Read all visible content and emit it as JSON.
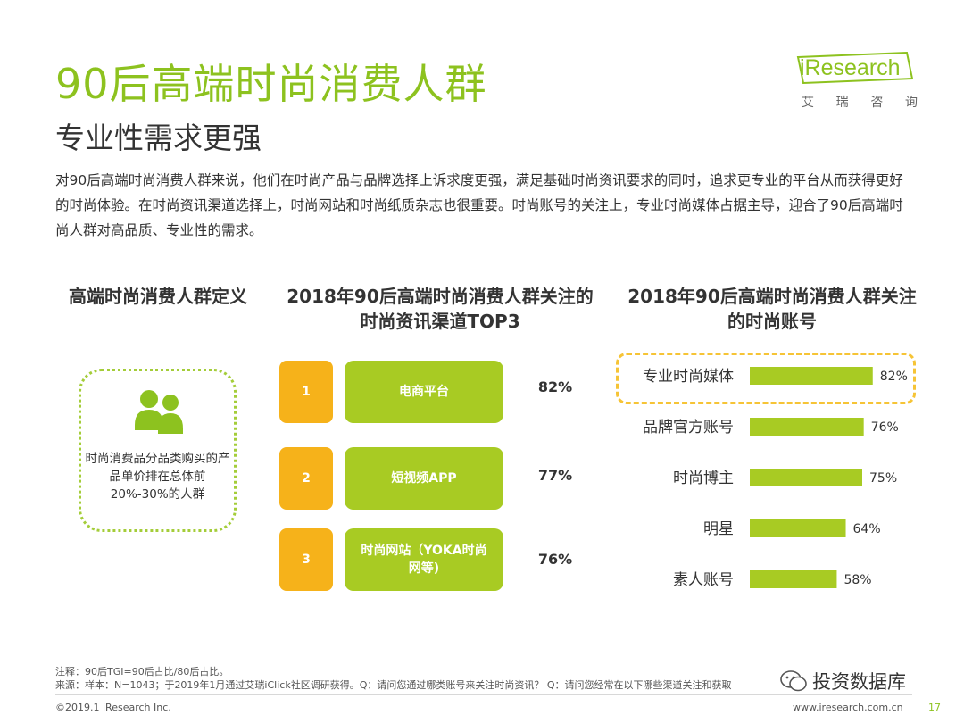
{
  "header": {
    "title": "90后高端时尚消费人群",
    "subtitle": "专业性需求更强"
  },
  "logo": {
    "text": "iResearch",
    "cn": [
      "艾",
      "瑞",
      "咨",
      "询"
    ],
    "color": "#8dc21f"
  },
  "intro": "对90后高端时尚消费人群来说，他们在时尚产品与品牌选择上诉求度更强，满足基础时尚资讯要求的同时，追求更专业的平台从而获得更好的时尚体验。在时尚资讯渠道选择上，时尚网站和时尚纸质杂志也很重要。时尚账号的关注上，专业时尚媒体占据主导，迎合了90后高端时尚人群对高品质、专业性的需求。",
  "definition": {
    "title": "高端时尚消费人群定义",
    "icon": "people-icon",
    "text": "时尚消费品分品类购买的产品单价排在总体前20%-30%的人群"
  },
  "chart_data": [
    {
      "type": "table",
      "title": "2018年90后高端时尚消费人群关注的时尚资讯渠道TOP3",
      "columns": [
        "rank",
        "channel",
        "percent"
      ],
      "rows": [
        [
          "1",
          "电商平台",
          "82%"
        ],
        [
          "2",
          "短视频APP",
          "77%"
        ],
        [
          "3",
          "时尚网站（YOKA时尚网等)",
          "76%"
        ]
      ],
      "colors": {
        "rank": "#f6b21a",
        "channel": "#a8cb23"
      }
    },
    {
      "type": "bar",
      "orientation": "horizontal",
      "title": "2018年90后高端时尚消费人群关注的时尚账号",
      "categories": [
        "专业时尚媒体",
        "品牌官方账号",
        "时尚博主",
        "明星",
        "素人账号"
      ],
      "values": [
        82,
        76,
        75,
        64,
        58
      ],
      "value_labels": [
        "82%",
        "76%",
        "75%",
        "64%",
        "58%"
      ],
      "unit": "%",
      "xlim": [
        0,
        100
      ],
      "bar_color": "#a8cb23",
      "highlight": "专业时尚媒体",
      "highlight_color": "#f6c436"
    }
  ],
  "footer": {
    "note": "注释：90后TGI=90后占比/80后占比。",
    "source": "来源：样本：N=1043；于2019年1月通过艾瑞iClick社区调研获得。Q：请问您通过哪类账号来关注时尚资讯？ Q：请问您经常在以下哪些渠道关注和获取",
    "copyright": "©2019.1 iResearch Inc.",
    "site": "www.iresearch.com.cn",
    "wechat": "投资数据库",
    "page": "17"
  }
}
